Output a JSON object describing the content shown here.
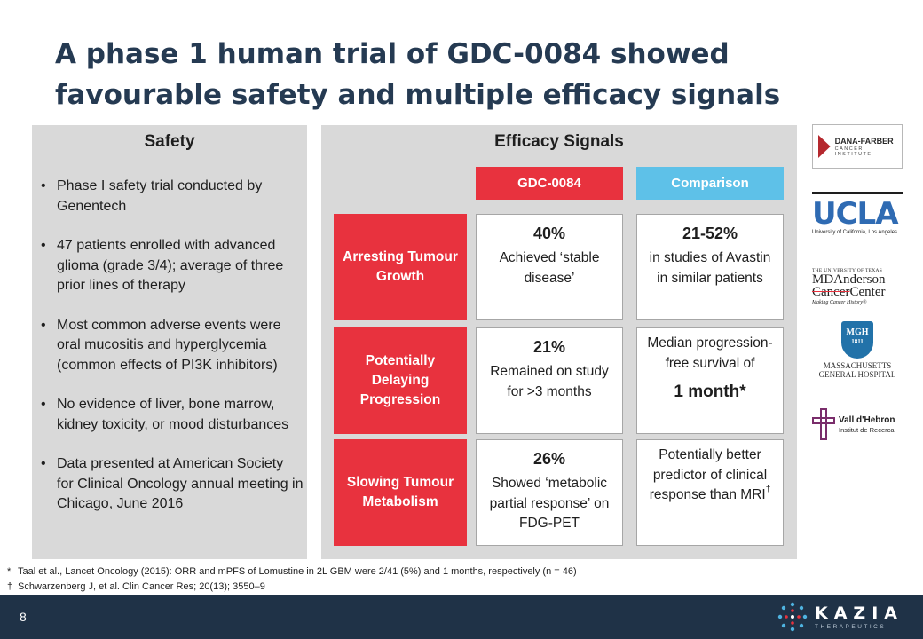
{
  "slide": {
    "title": "A phase 1 human trial of GDC-0084 showed favourable safety and multiple efficacy signals",
    "page_number": "8"
  },
  "safety": {
    "heading": "Safety",
    "bullets": [
      "Phase I safety trial conducted by Genentech",
      "47 patients enrolled with advanced glioma (grade 3/4); average of three prior lines of therapy",
      "Most common adverse events were oral mucositis and hyperglycemia (common effects of PI3K inhibitors)",
      "No evidence of liver, bone marrow, kidney toxicity, or mood disturbances",
      "Data presented at American Society for Clinical Oncology annual meeting in Chicago, June 2016"
    ]
  },
  "efficacy": {
    "heading": "Efficacy Signals",
    "columns": [
      "GDC-0084",
      "Comparison"
    ],
    "rows": [
      {
        "label": "Arresting Tumour Growth",
        "gdc_value": "40%",
        "gdc_text": "Achieved ‘stable disease’",
        "comp_value": "21-52%",
        "comp_text": "in studies of Avastin in similar patients"
      },
      {
        "label": "Potentially Delaying Progression",
        "gdc_value": "21%",
        "gdc_text": "Remained on study for >3 months",
        "comp_text": "Median progression-free survival of",
        "comp_value": "1 month*"
      },
      {
        "label": "Slowing Tumour Metabolism",
        "gdc_value": "26%",
        "gdc_text": "Showed ‘metabolic partial response’ on FDG-PET",
        "comp_text": "Potentially better predictor of clinical response than MRI",
        "comp_mark": "†"
      }
    ]
  },
  "logos": {
    "dana_farber": {
      "name": "DANA-FARBER",
      "sub": "CANCER INSTITUTE"
    },
    "ucla": {
      "name": "UCLA",
      "sub": "University of California, Los Angeles"
    },
    "md_anderson": {
      "top": "THE UNIVERSITY OF TEXAS",
      "line1": "MDAnderson",
      "line2": "Cancer",
      "line2b": "Center",
      "tagline": "Making Cancer History®"
    },
    "mgh": {
      "mark_line1": "MGH",
      "mark_line2": "1811",
      "line1": "MASSACHUSETTS",
      "line2": "GENERAL HOSPITAL"
    },
    "vall_hebron": {
      "name": "Vall d'Hebron",
      "sub": "Institut de Recerca"
    }
  },
  "footnotes": [
    {
      "symbol": "*",
      "text": "Taal et al., Lancet Oncology (2015): ORR and mPFS of Lomustine in 2L GBM were 2/41 (5%) and 1 months, respectively (n = 46)"
    },
    {
      "symbol": "†",
      "text": "Schwarzenberg J, et al. Clin Cancer Res; 20(13); 3550–9"
    }
  ],
  "brand": {
    "name": "KAZIA",
    "sub": "THERAPEUTICS"
  },
  "colors": {
    "title": "#253a52",
    "accent_red": "#e8323e",
    "accent_blue": "#5ec1e8",
    "panel_grey": "#d9d9d9",
    "footer": "#1f3247"
  }
}
